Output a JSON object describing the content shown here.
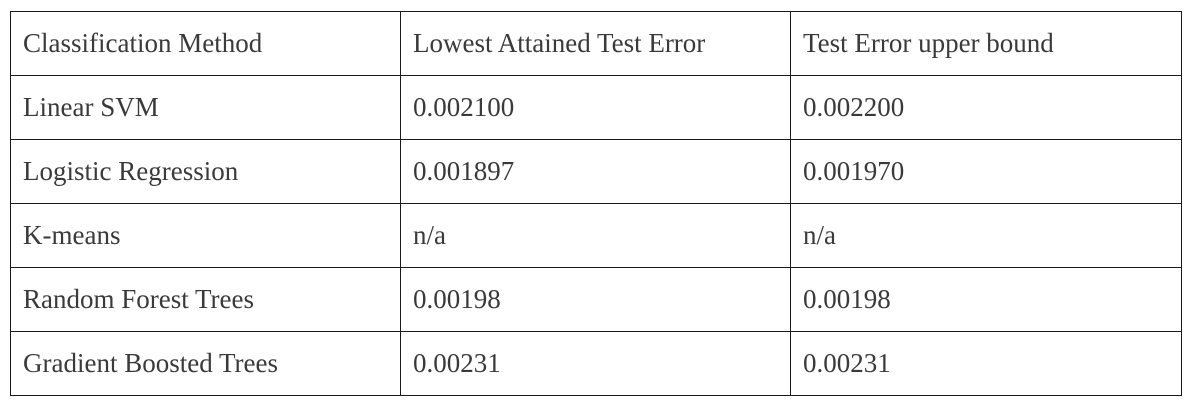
{
  "table": {
    "headers": [
      "Classification Method",
      "Lowest Attained Test Error",
      "Test Error upper bound"
    ],
    "rows": [
      [
        "Linear SVM",
        "0.002100",
        "0.002200"
      ],
      [
        "Logistic Regression",
        "0.001897",
        "0.001970"
      ],
      [
        "K-means",
        "n/a",
        "n/a"
      ],
      [
        "Random Forest Trees",
        "0.00198",
        "0.00198"
      ],
      [
        "Gradient Boosted Trees",
        "0.00231",
        "0.00231"
      ]
    ]
  }
}
